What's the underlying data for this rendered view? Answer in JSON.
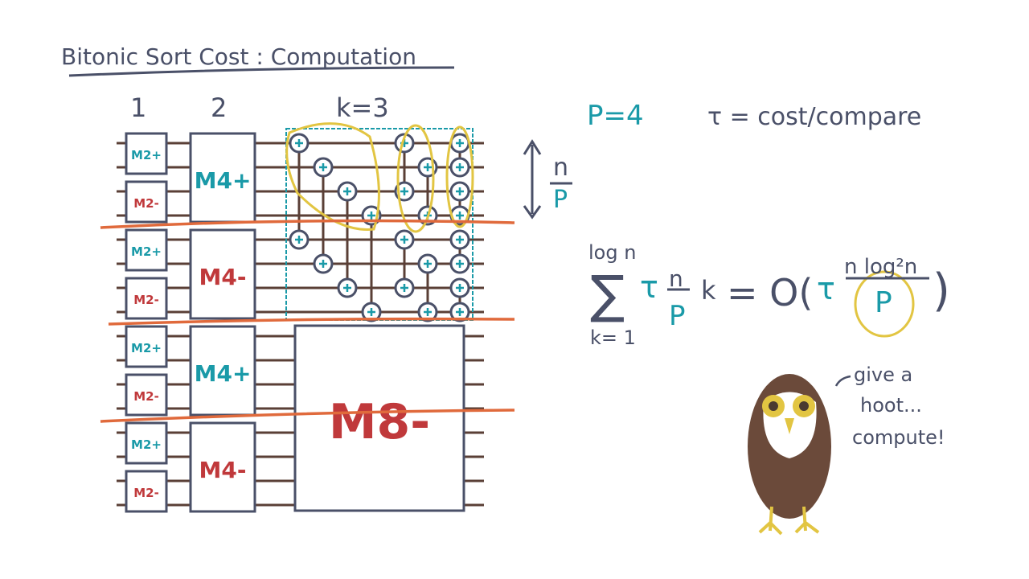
{
  "title": "Bitonic Sort Cost : Computation",
  "stage_labels": [
    "1",
    "2",
    "k=3"
  ],
  "m2_boxes": [
    "M2+",
    "M2-",
    "M2+",
    "M2-",
    "M2+",
    "M2-",
    "M2+",
    "M2-"
  ],
  "m4_boxes": [
    "M4+",
    "M4-",
    "M4+",
    "M4-"
  ],
  "m8_box": "M8-",
  "params": {
    "p": "P=4",
    "tau": "τ = cost/compare"
  },
  "block_size": {
    "num": "n",
    "den": "P"
  },
  "formula": {
    "upper": "log n",
    "sigma": "∑",
    "lower": "k= 1",
    "tau": "τ",
    "frac_num": "n",
    "frac_den": "P",
    "k": "k",
    "equals": "= O(",
    "tau2": "τ",
    "big_num": "n log²n",
    "big_den": "P",
    "close": ")"
  },
  "owl_speech": [
    "give a",
    "hoot...",
    "compute!"
  ],
  "colors": {
    "teal": "#1a9aa8",
    "red": "#c0393b",
    "ink": "#4a5068",
    "wire": "#5a3f36",
    "orange": "#e06a3c",
    "yellow": "#e2c542"
  }
}
